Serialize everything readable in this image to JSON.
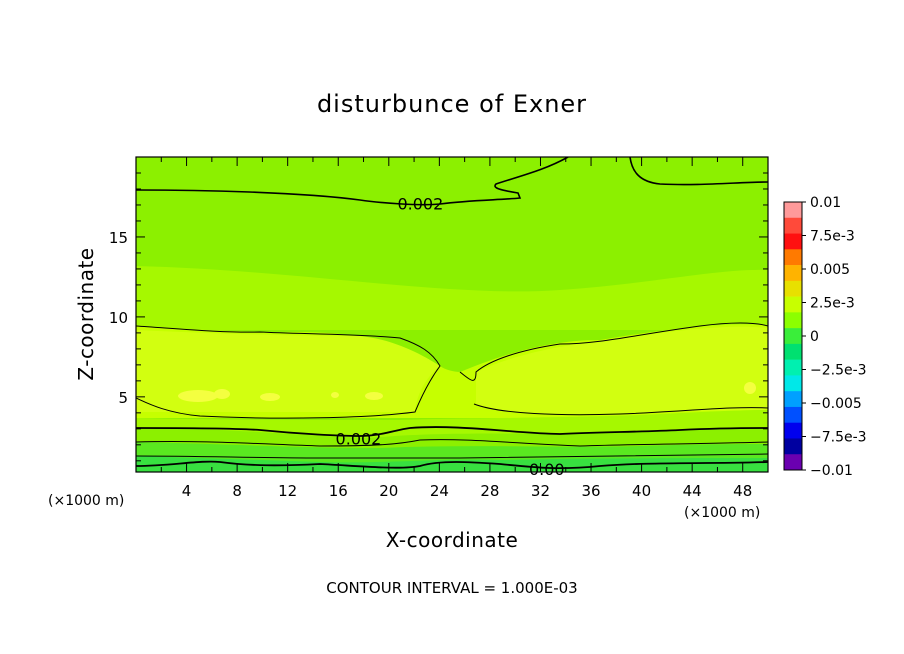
{
  "chart_data": {
    "type": "heatmap",
    "title": "disturbunce of Exner",
    "xlabel": "X-coordinate",
    "ylabel": "Z-coordinate",
    "x_unit": "(×1000 m)",
    "y_unit": "(×1000 m)",
    "xlim": [
      0,
      50
    ],
    "ylim": [
      0.3,
      20
    ],
    "x_ticks": [
      "4",
      "8",
      "12",
      "16",
      "20",
      "24",
      "28",
      "32",
      "36",
      "40",
      "44",
      "48"
    ],
    "y_ticks": [
      "5",
      "10",
      "15"
    ],
    "colorbar": {
      "labels": [
        "0.01",
        "7.5e-3",
        "0.005",
        "2.5e-3",
        "0",
        "−2.5e-3",
        "−0.005",
        "−7.5e-3",
        "−0.01"
      ],
      "levels": [
        0.01,
        0.0075,
        0.005,
        0.0025,
        0,
        -0.0025,
        -0.005,
        -0.0075,
        -0.01
      ],
      "colors": [
        "#ff9a9a",
        "#ff4a3a",
        "#ff1010",
        "#ff7a00",
        "#ffb300",
        "#e8e000",
        "#c8ff00",
        "#8cff00",
        "#3aee3a",
        "#00e070",
        "#00f0b0",
        "#00e8e8",
        "#00a0ff",
        "#0050ff",
        "#0000ee",
        "#0000a0",
        "#6a00b0"
      ]
    },
    "contour_labels": [
      {
        "text": "0.002",
        "x": 22.5,
        "z": 17.1
      },
      {
        "text": "0.002",
        "x": 17.6,
        "z": 2.4
      },
      {
        "text": "0.00",
        "x": 32.5,
        "z": 0.5
      }
    ],
    "footer": "CONTOUR INTERVAL = 1.000E-03"
  }
}
